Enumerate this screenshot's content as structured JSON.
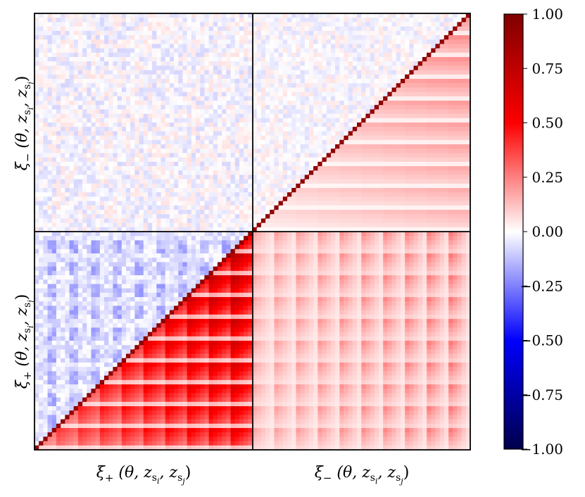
{
  "chart_data": {
    "type": "heatmap",
    "title": "",
    "description_blocks": [
      "xi_plus",
      "xi_minus"
    ],
    "x_labels": [
      {
        "sym": "ξ",
        "sub": "+",
        "args": "(θ, z",
        "s1": "s",
        "i": "i",
        "mid": ", z",
        "s2": "s",
        "j": "j",
        "end": ")"
      },
      {
        "sym": "ξ",
        "sub": "−",
        "args": "(θ, z",
        "s1": "s",
        "i": "i",
        "mid": ", z",
        "s2": "s",
        "j": "j",
        "end": ")"
      }
    ],
    "y_labels": [
      {
        "sym": "ξ",
        "sub": "−",
        "args": "(θ, z",
        "s1": "s",
        "i": "i",
        "mid": ", z",
        "s2": "s",
        "j": "j",
        "end": ")"
      },
      {
        "sym": "ξ",
        "sub": "+",
        "args": "(θ, z",
        "s1": "s",
        "i": "i",
        "mid": ", z",
        "s2": "s",
        "j": "j",
        "end": ")"
      }
    ],
    "colorbar": {
      "colormap": "seismic",
      "range": [
        -1.0,
        1.0
      ],
      "ticks": [
        1.0,
        0.75,
        0.5,
        0.25,
        0.0,
        -0.25,
        -0.5,
        -0.75,
        -1.0
      ],
      "tick_labels": [
        "1.00",
        "0.75",
        "0.50",
        "0.25",
        "0.00",
        "−0.25",
        "−0.50",
        "−0.75",
        "−1.00"
      ]
    },
    "n_tomo_bins_per_block": 10,
    "quadrants": {
      "upper_left": {
        "block": "xi_minus × xi_minus",
        "pattern": "weak noise around 0, faint negative",
        "typical_value": -0.05
      },
      "upper_right": {
        "block": "xi_plus × xi_minus (upper)",
        "pattern": "noise around 0",
        "typical_value": 0.0
      },
      "lower_right": {
        "block": "xi_plus × xi_minus (lower)",
        "pattern": "positive gradient sub-blocks",
        "peak_value": 0.45
      },
      "lower_left": {
        "block": "xi_plus × xi_plus",
        "pattern": "strong positive sub-blocks below diagonal, negative tint above",
        "peak_value": 0.9,
        "upper_value": -0.15
      },
      "diagonal": {
        "value": 1.0
      }
    }
  }
}
